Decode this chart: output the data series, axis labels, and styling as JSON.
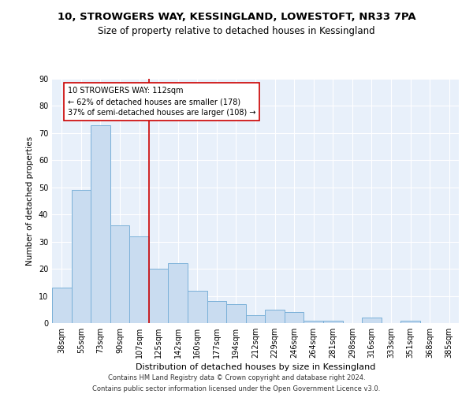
{
  "title1": "10, STROWGERS WAY, KESSINGLAND, LOWESTOFT, NR33 7PA",
  "title2": "Size of property relative to detached houses in Kessingland",
  "xlabel": "Distribution of detached houses by size in Kessingland",
  "ylabel": "Number of detached properties",
  "categories": [
    "38sqm",
    "55sqm",
    "73sqm",
    "90sqm",
    "107sqm",
    "125sqm",
    "142sqm",
    "160sqm",
    "177sqm",
    "194sqm",
    "212sqm",
    "229sqm",
    "246sqm",
    "264sqm",
    "281sqm",
    "298sqm",
    "316sqm",
    "333sqm",
    "351sqm",
    "368sqm",
    "385sqm"
  ],
  "values": [
    13,
    49,
    73,
    36,
    32,
    20,
    22,
    12,
    8,
    7,
    3,
    5,
    4,
    1,
    1,
    0,
    2,
    0,
    1,
    0,
    0
  ],
  "bar_color": "#c9dcf0",
  "bar_edge_color": "#7ab0d8",
  "property_line_x": 4.5,
  "property_label": "10 STROWGERS WAY: 112sqm",
  "annotation_line1": "← 62% of detached houses are smaller (178)",
  "annotation_line2": "37% of semi-detached houses are larger (108) →",
  "vline_color": "#cc0000",
  "annotation_box_edge_color": "#cc0000",
  "ylim": [
    0,
    90
  ],
  "yticks": [
    0,
    10,
    20,
    30,
    40,
    50,
    60,
    70,
    80,
    90
  ],
  "bg_color": "#e8f0fa",
  "grid_color": "#ffffff",
  "footer": "Contains HM Land Registry data © Crown copyright and database right 2024.\nContains public sector information licensed under the Open Government Licence v3.0.",
  "title1_fontsize": 9.5,
  "title2_fontsize": 8.5,
  "xlabel_fontsize": 8,
  "ylabel_fontsize": 7.5,
  "tick_fontsize": 7,
  "annotation_fontsize": 7,
  "footer_fontsize": 6
}
